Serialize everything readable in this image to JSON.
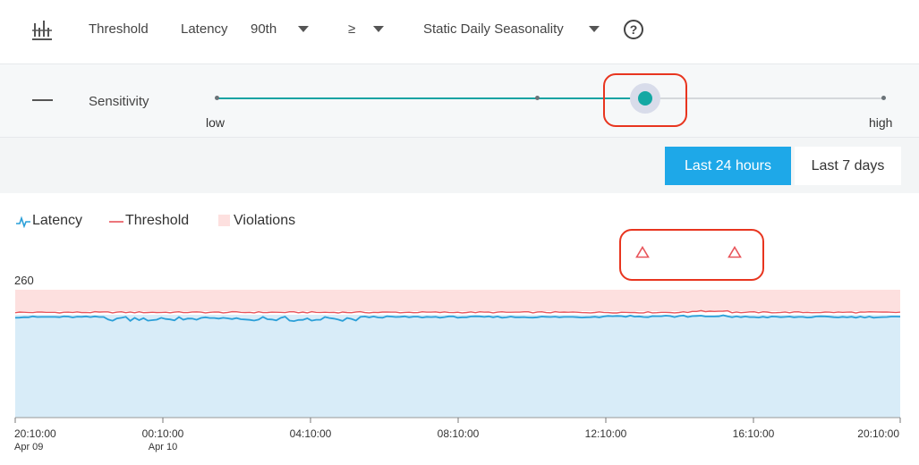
{
  "toolbar": {
    "chart_icon": "bar-chart-icon",
    "threshold_label": "Threshold",
    "metric_label": "Latency",
    "percentile_value": "90th",
    "operator_value": "≥",
    "seasonality_value": "Static Daily Seasonality",
    "help_icon": "question-circle-icon",
    "help_glyph": "?"
  },
  "sensitivity": {
    "label": "Sensitivity",
    "low_label": "low",
    "high_label": "high",
    "level": 0.64
  },
  "time_range": {
    "options": [
      "Last 24 hours",
      "Last 7 days"
    ],
    "selected": "Last 24 hours"
  },
  "legend": {
    "latency": "Latency",
    "threshold": "Threshold",
    "violations": "Violations"
  },
  "colors": {
    "accent": "#1ea8e8",
    "slider": "#13a8a3",
    "latency": "#2a9fd8",
    "threshold": "#e8545a",
    "violation_band": "#fde0df",
    "latency_fill": "#d8ecf8",
    "highlight": "#e8351f"
  },
  "chart_data": {
    "type": "line",
    "ylabel": "",
    "y_top_label": "260",
    "ylim": [
      0,
      260
    ],
    "x_ticks": [
      {
        "time": "20:10:00",
        "date": "Apr 09"
      },
      {
        "time": "00:10:00",
        "date": "Apr 10"
      },
      {
        "time": "04:10:00",
        "date": ""
      },
      {
        "time": "08:10:00",
        "date": ""
      },
      {
        "time": "12:10:00",
        "date": ""
      },
      {
        "time": "16:10:00",
        "date": ""
      },
      {
        "time": "20:10:00",
        "date": ""
      }
    ],
    "violation_band_min": 205,
    "threshold_approx": 214,
    "latency_approx": 205,
    "violation_markers": [
      "12:55",
      "15:50"
    ]
  }
}
